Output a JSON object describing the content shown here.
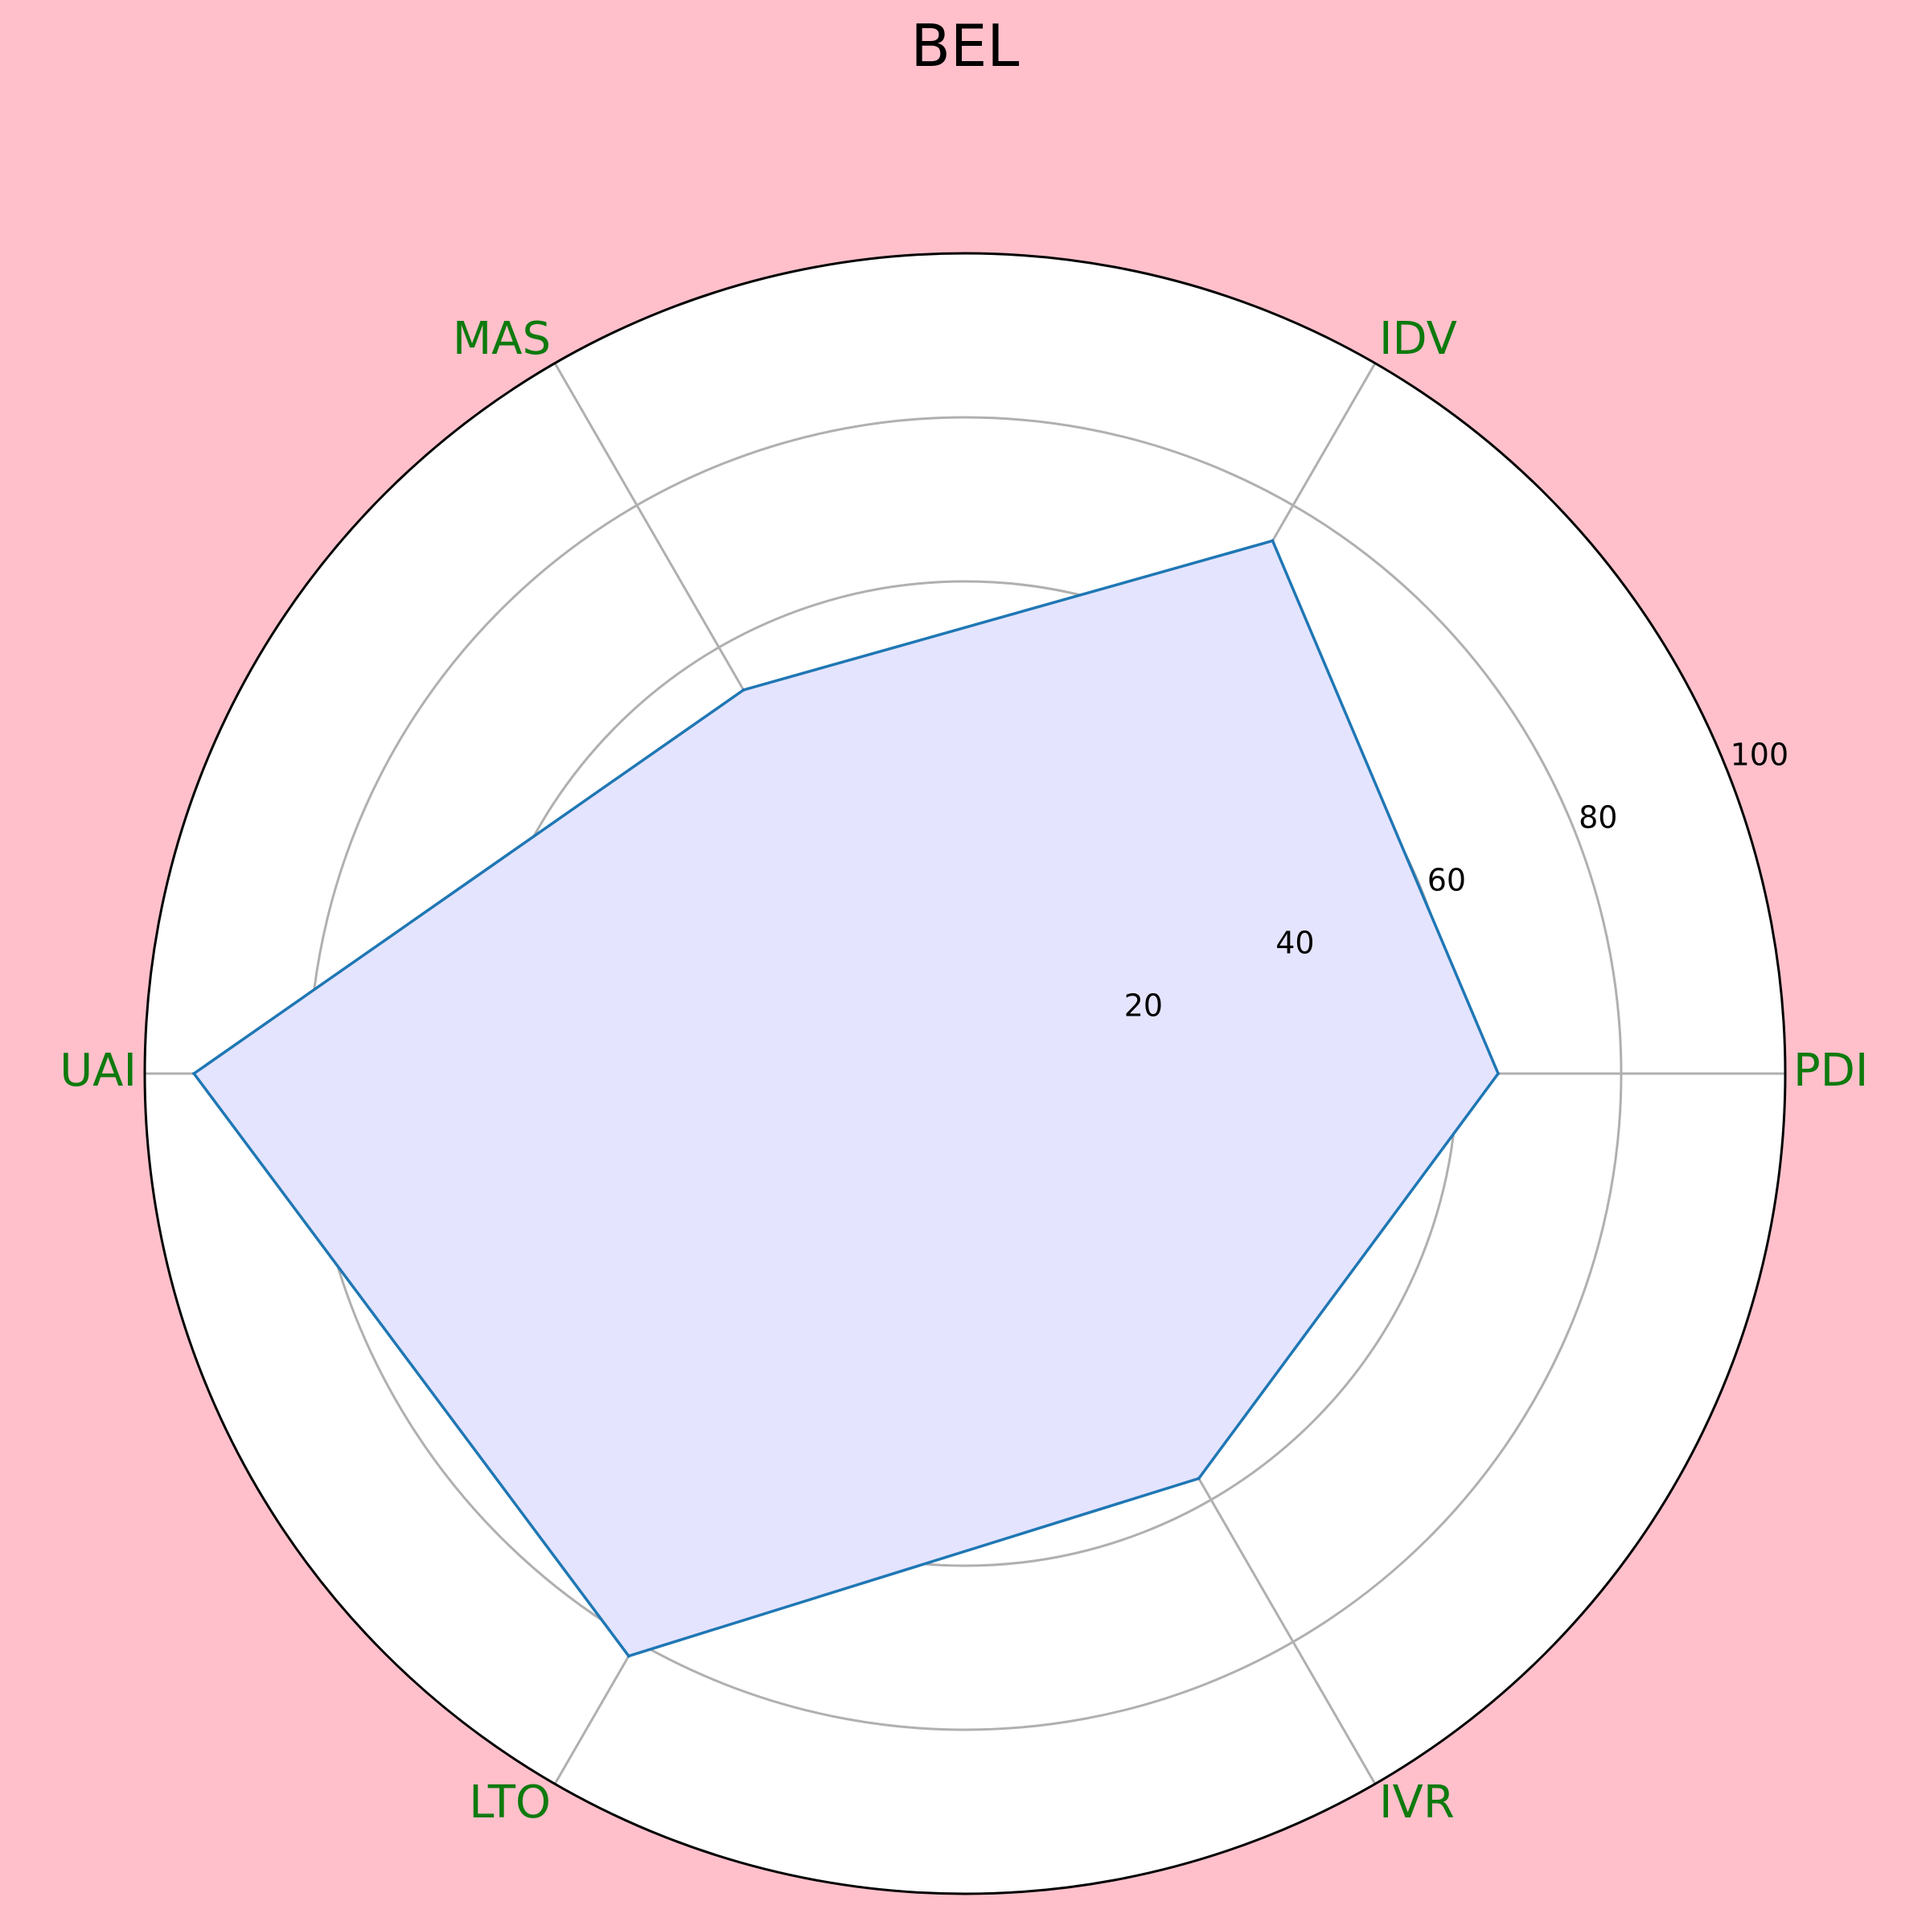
{
  "page": {
    "background": "#ffc0cb"
  },
  "chart_data": {
    "type": "radar",
    "title": "BEL",
    "axes": [
      "PDI",
      "IDV",
      "MAS",
      "UAI",
      "LTO",
      "IVR"
    ],
    "series": [
      {
        "values": [
          65,
          75,
          54,
          94,
          82,
          57
        ],
        "line_color": "#1f77b4",
        "fill_color": "#e4e4ff"
      }
    ],
    "rlim": [
      0,
      100
    ],
    "radial_ticks": [
      20,
      40,
      60,
      80,
      100
    ],
    "grid": true,
    "axis_label_color": "#0e7a0e",
    "grid_color": "#b0b0b0",
    "plot_background": "#ffffff"
  }
}
